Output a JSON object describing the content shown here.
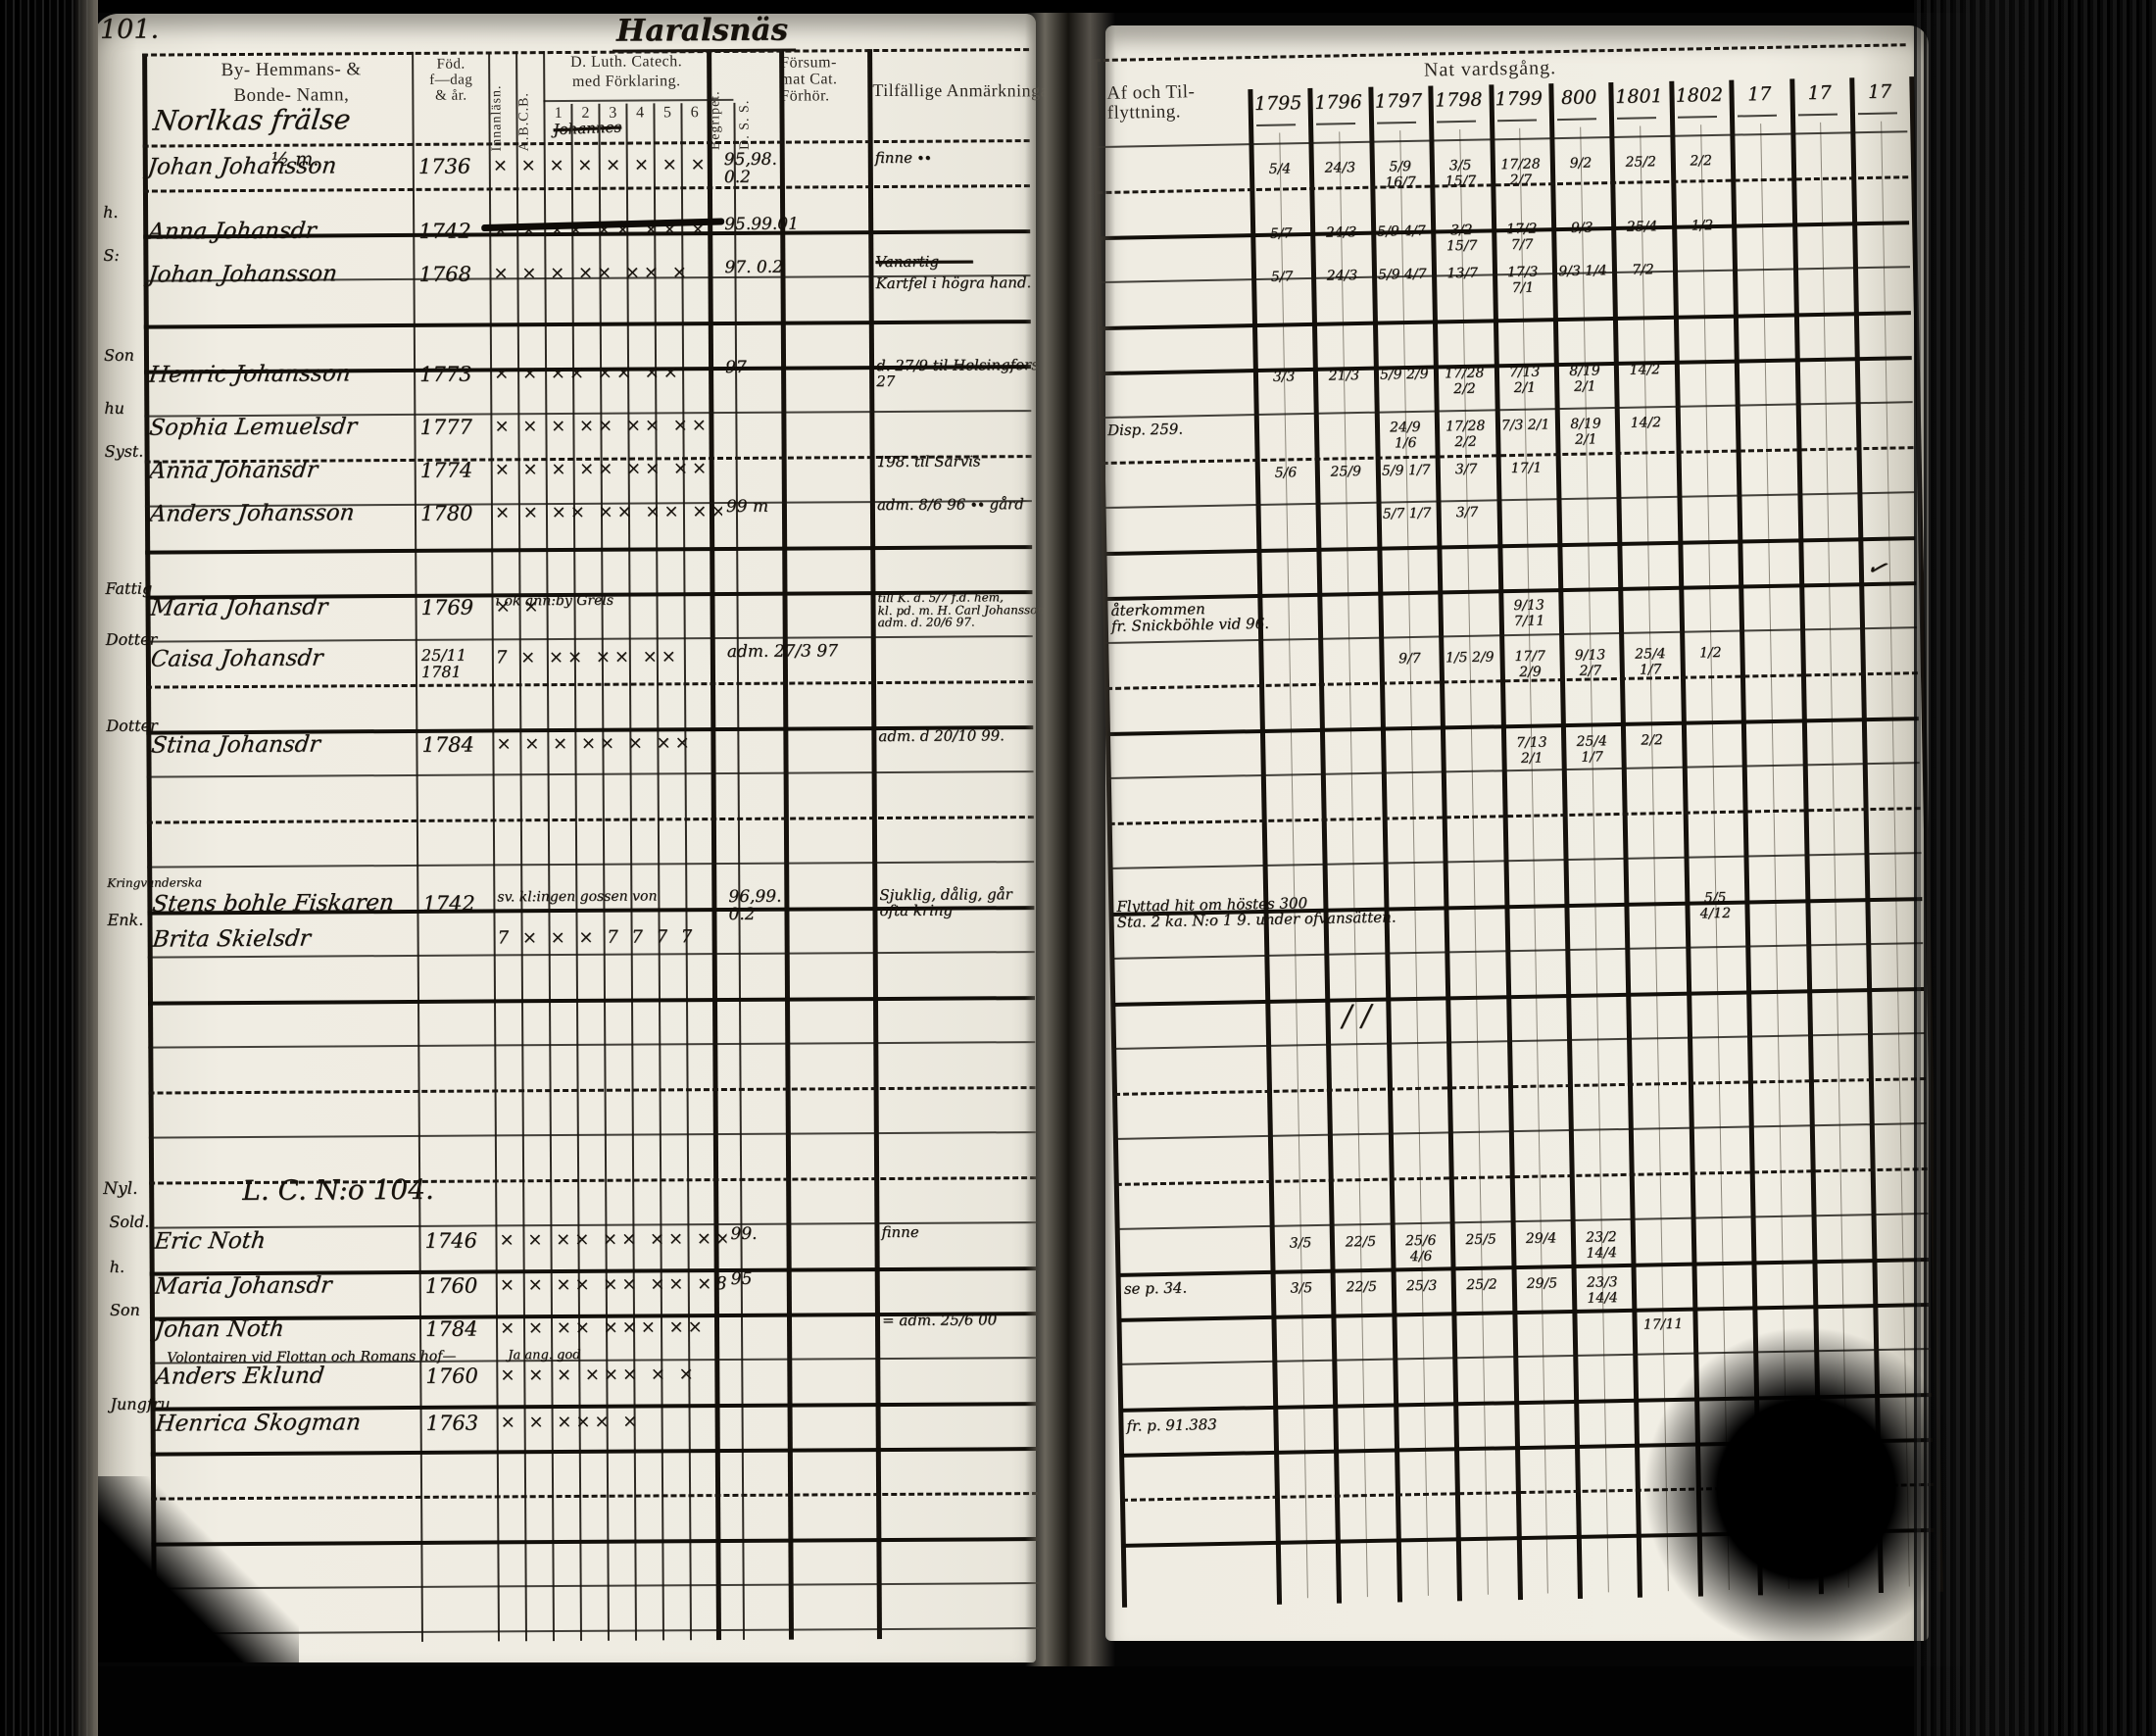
{
  "page": {
    "number": "101.",
    "title": "Haralsnäs"
  },
  "left_header": {
    "names_l1": "By-  Hemmans-  &",
    "names_l2": "Bonde-  Namn,",
    "names_hw1": "Norlkas   frälse",
    "names_hw2": "½ m.",
    "birth": "Föd.\nf—dag\n& år.",
    "col_innanlasn": "Innanläsn.",
    "col_abcb": "A.B.C.B.",
    "catech_l1": "D. Luth. Catech.",
    "catech_l2": "med Förklaring.",
    "catech_nums": [
      "1",
      "2",
      "3",
      "4",
      "5",
      "6"
    ],
    "catech_scrawl": "Johannes",
    "col_begriper": "Begripet.",
    "col_dss": "D. S. S.",
    "forsummat": "Försum-\nmat Cat.\nFörhör.",
    "anmarkningar": "Tilfällige Anmärkningar"
  },
  "right_header": {
    "flyttning": "Af och Til-\nflyttning.",
    "nattvardsgang": "Nat vardsgång.",
    "years": [
      "1795",
      "1796",
      "1797",
      "1798",
      "1799",
      "800",
      "1801",
      "1802",
      "17",
      "17",
      "17"
    ]
  },
  "decor": {
    "check": "✓",
    "slashes": "∕ ∕",
    "dash": "—"
  },
  "rows": [
    {
      "prefix": "",
      "name": "Johan Johansson",
      "birth": "1736",
      "crossed": false,
      "marks": "×  ×   ×   × ×   × ×   ×",
      "fors": "95,98.\n0.2",
      "anm": "finne ∙∙",
      "flytt": "",
      "years": [
        "5/4",
        "24/3",
        "5/9 16/7",
        "3/5 15/7",
        "17/28 2/7",
        "9/2",
        "25/2",
        "2/2",
        "",
        "",
        ""
      ]
    },
    {
      "prefix": "h.",
      "name": "Anna Johansdr",
      "birth": "1742",
      "crossed": false,
      "marks": "×   ×   ××  ××  ××  ×",
      "fors": "95.99.01",
      "anm": "",
      "flytt": "",
      "years": [
        "5/7",
        "24/3",
        "5/9 4/7",
        "3/2 15/7",
        "17/2 7/7",
        "9/3",
        "25/4",
        "1/2",
        "",
        "",
        ""
      ]
    },
    {
      "prefix": "S:",
      "name": "Johan Johansson",
      "birth": "1768",
      "crossed": false,
      "marks": "×   ×   ×   ××  ××  ×",
      "fors": "97. 0.2",
      "anm_struck": "Vanartig ——",
      "anm": "Kartfel i högra hand.",
      "flytt": "",
      "years": [
        "5/7",
        "24/3",
        "5/9 4/7",
        "13/7",
        "17/3 7/1",
        "9/3 1/4",
        "7/2",
        "",
        "",
        "",
        ""
      ]
    },
    {
      "prefix": "Son",
      "name": "Henric Johansson",
      "birth": "1773",
      "crossed": false,
      "marks": "×   ×   ××  ××  ××",
      "fors": "97",
      "anm": "d. 27/9 til Helsingfors st. 27",
      "flytt": "",
      "years": [
        "3/3",
        "21/3",
        "5/9 2/9",
        "17/28 2/2",
        "7/13 2/1",
        "8/19 2/1",
        "14/2",
        "",
        "",
        "",
        ""
      ]
    },
    {
      "prefix": "hu",
      "name": "Sophia Lemuelsdr",
      "birth": "1777",
      "crossed": false,
      "marks": "×   ×   ×   ××  ××  ××",
      "fors": "",
      "anm": "",
      "flytt": "Disp. 259.",
      "years": [
        "",
        "",
        "24/9 1/6",
        "17/28 2/2",
        "7/3 2/1",
        "8/19 2/1",
        "14/2",
        "",
        "",
        "",
        ""
      ]
    },
    {
      "prefix": "Syst.",
      "name": "Anna Johansdr",
      "birth": "1774",
      "crossed": true,
      "marks": "×   ×   ×   ××  ××  ××",
      "fors": "",
      "anm": "198. til Sarvis",
      "flytt": "",
      "years": [
        "5/6",
        "25/9",
        "5/9 1/7",
        "3/7",
        "17/1",
        "",
        "",
        "",
        "",
        "",
        ""
      ]
    },
    {
      "prefix": "",
      "name": "Anders Johansson",
      "birth": "1780",
      "crossed": true,
      "marks": "×   ×   ××  ××  ××  ××",
      "fors": "99 m",
      "anm": "adm. 8/6 96 ∙∙  gård",
      "flytt": "",
      "years": [
        "",
        "",
        "5/7 1/7",
        "3/7",
        "",
        "",
        "",
        "",
        "",
        "",
        ""
      ]
    },
    {
      "prefix": "Fattig",
      "name": "Maria Johansdr",
      "birth": "1769",
      "crossed": true,
      "marks": "×  ×",
      "note": "i ök änn:by Grels",
      "fors": "",
      "anm": "till K. d. 5/7 f.d. hem,\nkl. pd. m. H. Carl Johansson,\nadm. d. 20/6 97.",
      "flytt": "återkommen\nfr. Snickböhle vid 96.",
      "years": [
        "",
        "",
        "",
        "",
        "9/13\n7/11",
        "",
        "",
        "",
        "",
        "",
        ""
      ]
    },
    {
      "prefix": "Dotter",
      "name": "Caisa Johansdr",
      "birth": "25/11 1781",
      "crossed": false,
      "marks": "7   ×   ××  ××  ××",
      "fors": "adm. 27/3 97",
      "anm": "",
      "flytt": "",
      "years": [
        "",
        "",
        "9/7",
        "1/5 2/9",
        "17/7 2/9",
        "9/13 2/7",
        "25/4 1/7",
        "1/2",
        "",
        "",
        ""
      ]
    },
    {
      "prefix": "Dotter",
      "name": "Stina Johansdr",
      "birth": "1784",
      "crossed": false,
      "marks": "×   ×   ×   ××  ×   ××",
      "fors": "",
      "anm": "adm. d 20/10 99.",
      "flytt": "",
      "years": [
        "",
        "",
        "",
        "",
        "7/13 2/1",
        "25/4 1/7",
        "2/2",
        "",
        "",
        "",
        ""
      ]
    },
    {
      "prefix": "Kringvanderska",
      "name": "Stens bohle Fiskaren",
      "birth": "1742",
      "crossed": false,
      "marks": "",
      "note": "sv. kl:ingen gossen von",
      "fors": "96,99.\n0.2",
      "anm": "Sjuklig, dålig, går\nofta kring",
      "flytt": "Flyttad hit om höstes 300\nSta. 2 ka.    N:o 1 9. under ofvansätten.",
      "years": [
        "",
        "",
        "",
        "",
        "",
        "",
        "",
        "5/5\n4/12",
        "",
        "",
        ""
      ]
    },
    {
      "prefix": "Enk.",
      "name": "Brita Skielsdr",
      "birth": "",
      "crossed": false,
      "marks": "7   ×   ×   ×   7   7   7   7",
      "fors": "",
      "anm": "",
      "flytt": "",
      "years": [
        "",
        "",
        "",
        "",
        "",
        "",
        "",
        "",
        "",
        "",
        ""
      ]
    },
    {
      "section": "L. C.  N:o 104.",
      "margin": "Nyl."
    },
    {
      "prefix": "Sold.",
      "name": "Eric Noth",
      "birth": "1746",
      "crossed": true,
      "marks": "×   ×   ××  ××  ××  ×××",
      "fors": "99.",
      "anm": "finne",
      "flytt": "",
      "years": [
        "3/5",
        "22/5",
        "25/6 4/6",
        "25/5",
        "29/4",
        "23/2 14/4",
        "",
        "",
        "",
        "",
        ""
      ]
    },
    {
      "prefix": "h.",
      "name": "Maria Johansdr",
      "birth": "1760",
      "crossed": true,
      "marks": "×   ×   ××  ××  ××  ×8×",
      "fors": "95",
      "anm": "",
      "flytt": "se p. 34.",
      "years": [
        "3/5",
        "22/5",
        "25/3",
        "25/2",
        "29/5",
        "23/3 14/4",
        "",
        "",
        "",
        "",
        ""
      ]
    },
    {
      "prefix": "Son",
      "name": "Johan Noth",
      "birth": "1784",
      "crossed": true,
      "marks": "×   ×   ××  ×××  ××",
      "fors": "",
      "anm": "= adm. 25/6 00",
      "flytt": "",
      "years": [
        "",
        "",
        "",
        "",
        "",
        "",
        "17/11",
        "",
        "",
        "",
        ""
      ]
    },
    {
      "small": true,
      "name": "Volontairen vid Flottan och Romans hof—",
      "marks": "Ja ang. god"
    },
    {
      "prefix": "",
      "name": "Anders Eklund",
      "birth": "1760",
      "crossed": false,
      "marks": "×   ×   ×   ×××  ×   ×",
      "fors": "",
      "anm": "",
      "flytt": "",
      "years": [
        "",
        "",
        "",
        "",
        "",
        "",
        "",
        "",
        "",
        "",
        ""
      ]
    },
    {
      "prefix": "Jungfru",
      "name": "Henrica Skogman",
      "birth": "1763",
      "crossed": false,
      "marks": "×   ×   ×××  ×",
      "fors": "",
      "anm": "",
      "flytt": "fr. p. 91.383",
      "years": [
        "",
        "",
        "",
        "",
        "",
        "",
        "",
        "",
        "",
        "",
        ""
      ]
    }
  ]
}
